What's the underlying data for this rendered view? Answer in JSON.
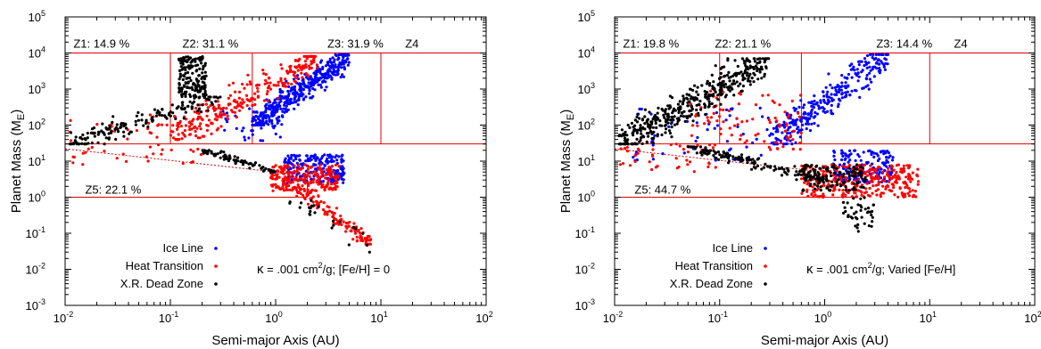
{
  "chart_data": [
    {
      "type": "scatter",
      "xlabel": "Semi-major Axis (AU)",
      "ylabel": "Planet Mass (M",
      "ylabel_sub": "E",
      "ylabel_close": ")",
      "xscale": "log",
      "yscale": "log",
      "xlim": [
        0.01,
        100
      ],
      "ylim": [
        0.001,
        100000
      ],
      "x_ticks": [
        {
          "v": 0.01,
          "b": "10",
          "e": "-2"
        },
        {
          "v": 0.1,
          "b": "10",
          "e": "-1"
        },
        {
          "v": 1,
          "b": "10",
          "e": "0"
        },
        {
          "v": 10,
          "b": "10",
          "e": "1"
        },
        {
          "v": 100,
          "b": "10",
          "e": "2"
        }
      ],
      "y_ticks": [
        {
          "v": 0.001,
          "b": "10",
          "e": "-3"
        },
        {
          "v": 0.01,
          "b": "10",
          "e": "-2"
        },
        {
          "v": 0.1,
          "b": "10",
          "e": "-1"
        },
        {
          "v": 1,
          "b": "10",
          "e": "0"
        },
        {
          "v": 10,
          "b": "10",
          "e": "1"
        },
        {
          "v": 100,
          "b": "10",
          "e": "2"
        },
        {
          "v": 1000,
          "b": "10",
          "e": "3"
        },
        {
          "v": 10000,
          "b": "10",
          "e": "4"
        },
        {
          "v": 100000,
          "b": "10",
          "e": "5"
        }
      ],
      "zones": [
        {
          "label": "Z1: 14.9 %",
          "at": [
            0.012,
            14000
          ]
        },
        {
          "label": "Z2: 31.1 %",
          "at": [
            0.13,
            14000
          ]
        },
        {
          "label": "Z3: 31.9 %",
          "at": [
            3.1,
            14000
          ]
        },
        {
          "label": "Z4",
          "at": [
            17,
            14000
          ]
        },
        {
          "label": "Z5: 22.1 %",
          "at": [
            0.0155,
            1.25
          ]
        }
      ],
      "zone_lines": {
        "top": 10000,
        "bottom": 30,
        "x_vertical": [
          0.1,
          0.6,
          10
        ],
        "z5_top": 1,
        "z5_right": 2,
        "x_min": 0.01
      },
      "legend": [
        {
          "name": "Ice Line",
          "color": "#0000ff"
        },
        {
          "name": "Heat Transition",
          "color": "#ff0000"
        },
        {
          "name": "X.R. Dead Zone",
          "color": "#000000"
        }
      ],
      "note_kappa": "κ",
      "note_pre": " = .001 cm",
      "note_sup": "2",
      "note_post": "/g; [Fe/H] = 0",
      "series": [
        {
          "name": "Ice Line",
          "color": "#0000ff",
          "clusters": [
            {
              "x": [
                0.6,
                5
              ],
              "y": [
                100,
                9000
              ],
              "n": 420,
              "trend": true
            },
            {
              "x": [
                1.2,
                4.5
              ],
              "y": [
                2.5,
                15
              ],
              "n": 200
            },
            {
              "x": [
                0.3,
                1.2
              ],
              "y": [
                30,
                300
              ],
              "n": 40
            }
          ]
        },
        {
          "name": "Heat Transition",
          "color": "#ff0000",
          "clusters": [
            {
              "x": [
                0.1,
                2.5
              ],
              "y": [
                40,
                8000
              ],
              "n": 260,
              "trend": true
            },
            {
              "x": [
                0.011,
                0.2
              ],
              "y": [
                8,
                200
              ],
              "n": 60
            },
            {
              "x": [
                0.9,
                4
              ],
              "y": [
                1.5,
                8
              ],
              "n": 220
            },
            {
              "x": [
                1.5,
                8
              ],
              "y": [
                0.05,
                2
              ],
              "n": 120,
              "trend": false,
              "desc": true
            }
          ]
        },
        {
          "name": "X.R. Dead Zone",
          "color": "#000000",
          "clusters": [
            {
              "x": [
                0.011,
                0.3
              ],
              "y": [
                30,
                600
              ],
              "n": 160,
              "trend": true
            },
            {
              "x": [
                0.12,
                0.22
              ],
              "y": [
                600,
                8000
              ],
              "n": 160
            },
            {
              "x": [
                0.2,
                1
              ],
              "y": [
                5,
                20
              ],
              "n": 80,
              "desc": true
            },
            {
              "x": [
                1.3,
                10
              ],
              "y": [
                0.03,
                1
              ],
              "n": 25,
              "desc": true
            }
          ]
        }
      ]
    },
    {
      "type": "scatter",
      "xlabel": "Semi-major Axis (AU)",
      "ylabel": "Planet Mass (M",
      "ylabel_sub": "E",
      "ylabel_close": ")",
      "xscale": "log",
      "yscale": "log",
      "xlim": [
        0.01,
        100
      ],
      "ylim": [
        0.001,
        100000
      ],
      "x_ticks": [
        {
          "v": 0.01,
          "b": "10",
          "e": "-2"
        },
        {
          "v": 0.1,
          "b": "10",
          "e": "-1"
        },
        {
          "v": 1,
          "b": "10",
          "e": "0"
        },
        {
          "v": 10,
          "b": "10",
          "e": "1"
        },
        {
          "v": 100,
          "b": "10",
          "e": "2"
        }
      ],
      "y_ticks": [
        {
          "v": 0.001,
          "b": "10",
          "e": "-3"
        },
        {
          "v": 0.01,
          "b": "10",
          "e": "-2"
        },
        {
          "v": 0.1,
          "b": "10",
          "e": "-1"
        },
        {
          "v": 1,
          "b": "10",
          "e": "0"
        },
        {
          "v": 10,
          "b": "10",
          "e": "1"
        },
        {
          "v": 100,
          "b": "10",
          "e": "2"
        },
        {
          "v": 1000,
          "b": "10",
          "e": "3"
        },
        {
          "v": 10000,
          "b": "10",
          "e": "4"
        },
        {
          "v": 100000,
          "b": "10",
          "e": "5"
        }
      ],
      "zones": [
        {
          "label": "Z1: 19.8 %",
          "at": [
            0.012,
            14000
          ]
        },
        {
          "label": "Z2: 21.1 %",
          "at": [
            0.09,
            14000
          ]
        },
        {
          "label": "Z3: 14.4 %",
          "at": [
            3.1,
            14000
          ]
        },
        {
          "label": "Z4",
          "at": [
            17,
            14000
          ]
        },
        {
          "label": "Z5: 44.7 %",
          "at": [
            0.0155,
            1.25
          ]
        }
      ],
      "zone_lines": {
        "top": 10000,
        "bottom": 30,
        "x_vertical": [
          0.1,
          0.6,
          10
        ],
        "z5_top": 1,
        "z5_right": 2,
        "x_min": 0.01
      },
      "legend": [
        {
          "name": "Ice Line",
          "color": "#0000ff"
        },
        {
          "name": "Heat Transition",
          "color": "#ff0000"
        },
        {
          "name": "X.R. Dead Zone",
          "color": "#000000"
        }
      ],
      "note_kappa": "κ",
      "note_pre": " = .001 cm",
      "note_sup": "2",
      "note_post": "/g; Varied [Fe/H]",
      "series": [
        {
          "name": "Ice Line",
          "color": "#0000ff",
          "clusters": [
            {
              "x": [
                0.3,
                4
              ],
              "y": [
                30,
                9000
              ],
              "n": 300,
              "trend": true
            },
            {
              "x": [
                0.015,
                0.3
              ],
              "y": [
                10,
                300
              ],
              "n": 60
            },
            {
              "x": [
                1.2,
                4.5
              ],
              "y": [
                2.5,
                20
              ],
              "n": 180
            }
          ]
        },
        {
          "name": "Heat Transition",
          "color": "#ff0000",
          "clusters": [
            {
              "x": [
                0.05,
                0.6
              ],
              "y": [
                20,
                1000
              ],
              "n": 90
            },
            {
              "x": [
                0.011,
                0.1
              ],
              "y": [
                5,
                30
              ],
              "n": 40
            },
            {
              "x": [
                0.6,
                8
              ],
              "y": [
                1,
                8
              ],
              "n": 320
            }
          ]
        },
        {
          "name": "X.R. Dead Zone",
          "color": "#000000",
          "clusters": [
            {
              "x": [
                0.011,
                0.3
              ],
              "y": [
                30,
                7000
              ],
              "n": 420,
              "trend": true
            },
            {
              "x": [
                0.05,
                1
              ],
              "y": [
                3,
                25
              ],
              "n": 160,
              "desc": true
            },
            {
              "x": [
                0.6,
                2.5
              ],
              "y": [
                1.5,
                8
              ],
              "n": 120
            },
            {
              "x": [
                1.5,
                3
              ],
              "y": [
                0.1,
                1
              ],
              "n": 40
            }
          ]
        }
      ]
    }
  ]
}
